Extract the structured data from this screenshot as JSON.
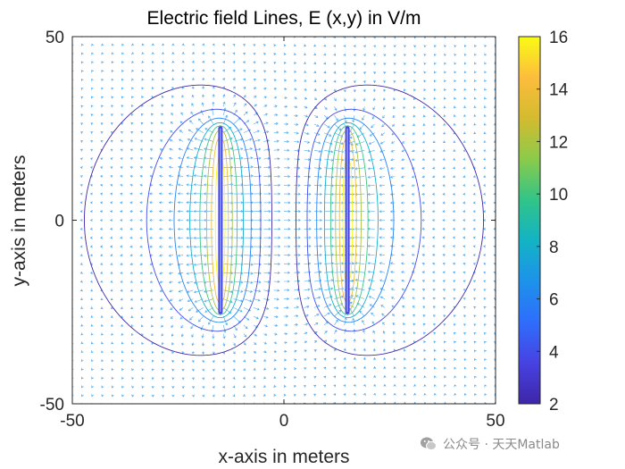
{
  "chart_data": {
    "type": "quiver",
    "title": "Electric field Lines, E (x,y) in V/m",
    "xlabel": "x-axis in meters",
    "ylabel": "y-axis in meters",
    "xlim": [
      -50,
      50
    ],
    "ylim": [
      -50,
      50
    ],
    "xticks": [
      "-50",
      "0",
      "50"
    ],
    "yticks": [
      "-50",
      "0",
      "50"
    ],
    "grid": false,
    "plates": [
      {
        "x": -15,
        "y_range": [
          -25,
          25
        ]
      },
      {
        "x": 15,
        "y_range": [
          -25,
          25
        ]
      }
    ],
    "contour_levels": [
      2,
      4,
      6,
      8,
      10,
      12,
      14,
      16
    ],
    "colorbar": {
      "range": [
        2,
        16
      ],
      "ticks": [
        "2",
        "4",
        "6",
        "8",
        "10",
        "12",
        "14",
        "16"
      ],
      "colormap": "parula",
      "position": "right"
    },
    "colors": {
      "axis": "#262626",
      "cmap": [
        "#3e26a8",
        "#4742e2",
        "#2f6dfc",
        "#1d92ea",
        "#13b3c5",
        "#31c488",
        "#8bcb4b",
        "#d4bb2f",
        "#fdbd3c",
        "#f9fb14"
      ]
    }
  },
  "watermark": {
    "text": "公众号 · 天天Matlab",
    "icon": "wechat-icon"
  }
}
